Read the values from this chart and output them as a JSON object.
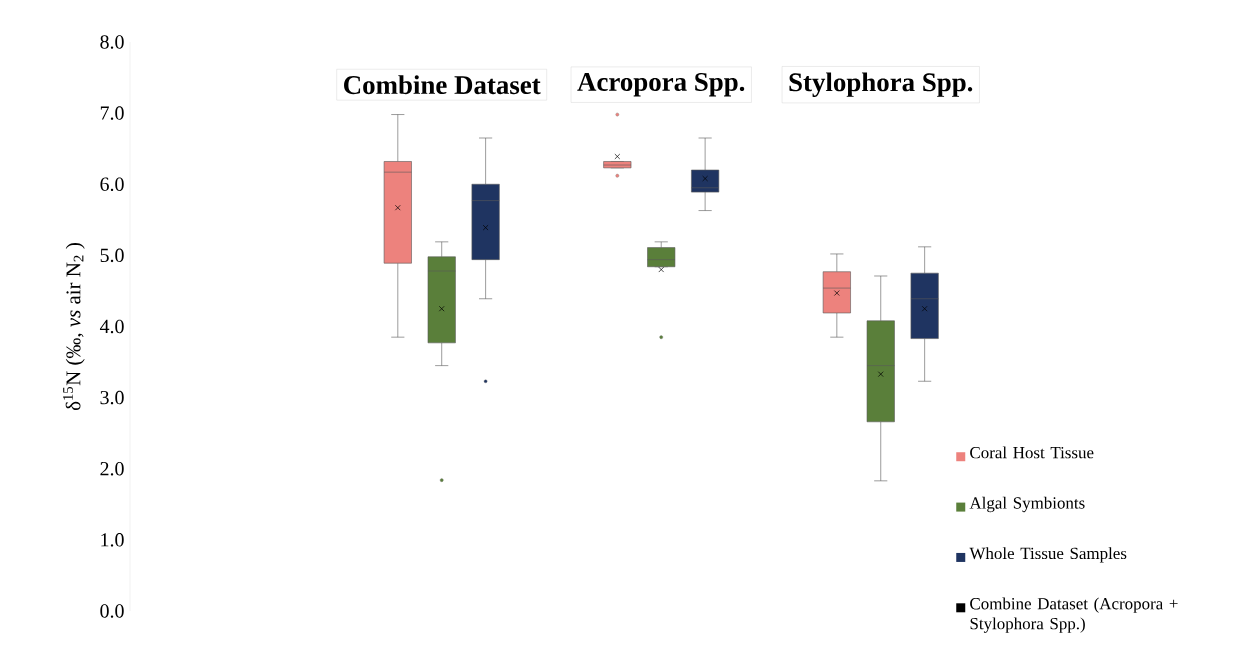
{
  "chart_data": {
    "type": "box",
    "ylabel": "δ$^{15}$N (‰, *vs* air N$_{2}$ )",
    "categories": [
      "Combine Dataset",
      "Acropora Spp.",
      "Stylophora Spp."
    ],
    "ylim": [
      0,
      8
    ],
    "yticks": [
      {
        "value": 0,
        "label": "0.0"
      },
      {
        "value": 1,
        "label": "1.0"
      },
      {
        "value": 2,
        "label": "2.0"
      },
      {
        "value": 3,
        "label": "3.0"
      },
      {
        "value": 4,
        "label": "4.0"
      },
      {
        "value": 5,
        "label": "5.0"
      },
      {
        "value": 6,
        "label": "6.0"
      },
      {
        "value": 7,
        "label": "7.0"
      },
      {
        "value": 8,
        "label": "8.0"
      }
    ],
    "grid": false,
    "legend": "right",
    "series": [
      {
        "name": "Coral Host Tissue",
        "color": "#ed827d",
        "boxes": [
          {
            "low": 3.85,
            "q1": 4.89,
            "median": 6.17,
            "q3": 6.32,
            "high": 6.98,
            "mean": 5.67
          },
          {
            "low": 6.23,
            "q1": 6.23,
            "median": 6.27,
            "q3": 6.32,
            "high": 6.32,
            "mean": 6.39,
            "outliers": [
              6.98,
              6.12
            ]
          },
          {
            "low": 3.85,
            "q1": 4.19,
            "median": 4.54,
            "q3": 4.77,
            "high": 5.02,
            "mean": 4.47
          }
        ]
      },
      {
        "name": "Algal Symbionts",
        "color": "#5a7f3a",
        "boxes": [
          {
            "low": 3.45,
            "q1": 3.77,
            "median": 4.78,
            "q3": 4.98,
            "high": 5.19,
            "mean": 4.25,
            "outliers": [
              1.84
            ]
          },
          {
            "low": 4.84,
            "q1": 4.84,
            "median": 4.94,
            "q3": 5.11,
            "high": 5.19,
            "mean": 4.8,
            "outliers": [
              3.85
            ]
          },
          {
            "low": 1.83,
            "q1": 2.66,
            "median": 3.45,
            "q3": 4.08,
            "high": 4.71,
            "mean": 3.33
          }
        ]
      },
      {
        "name": "Whole Tissue Samples",
        "color": "#1f3461",
        "boxes": [
          {
            "low": 4.39,
            "q1": 4.94,
            "median": 5.77,
            "q3": 6.0,
            "high": 6.65,
            "mean": 5.39,
            "outliers": [
              3.23
            ]
          },
          {
            "low": 5.63,
            "q1": 5.89,
            "median": 5.95,
            "q3": 6.2,
            "high": 6.65,
            "mean": 6.08
          },
          {
            "low": 3.23,
            "q1": 3.83,
            "median": 4.39,
            "q3": 4.75,
            "high": 5.12,
            "mean": 4.25
          }
        ]
      },
      {
        "name": "Combine Dataset (Acropora + Stylophora Spp.)",
        "color": "#000000",
        "values": [
          null,
          null,
          null
        ]
      }
    ]
  }
}
